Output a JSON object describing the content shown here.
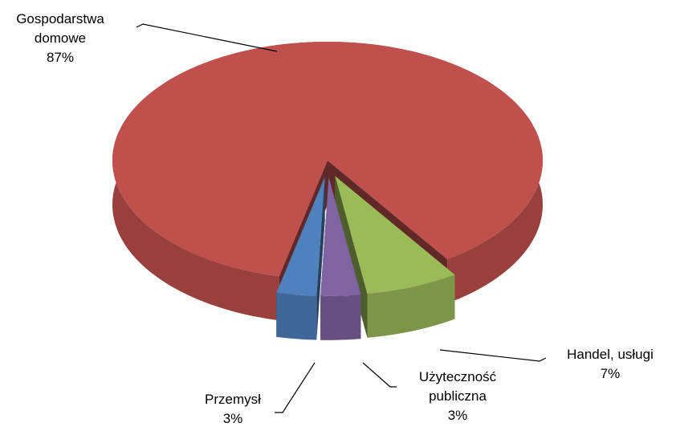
{
  "chart_data": {
    "type": "pie",
    "categories": [
      "Gospodarstwa domowe",
      "Handel, usługi",
      "Użyteczność publiczna",
      "Przemysł"
    ],
    "values": [
      87,
      7,
      3,
      3
    ],
    "value_labels": [
      "87%",
      "7%",
      "3%",
      "3%"
    ],
    "colors": [
      "#c0504d",
      "#9bbb59",
      "#8064a2",
      "#4f81bd"
    ]
  }
}
